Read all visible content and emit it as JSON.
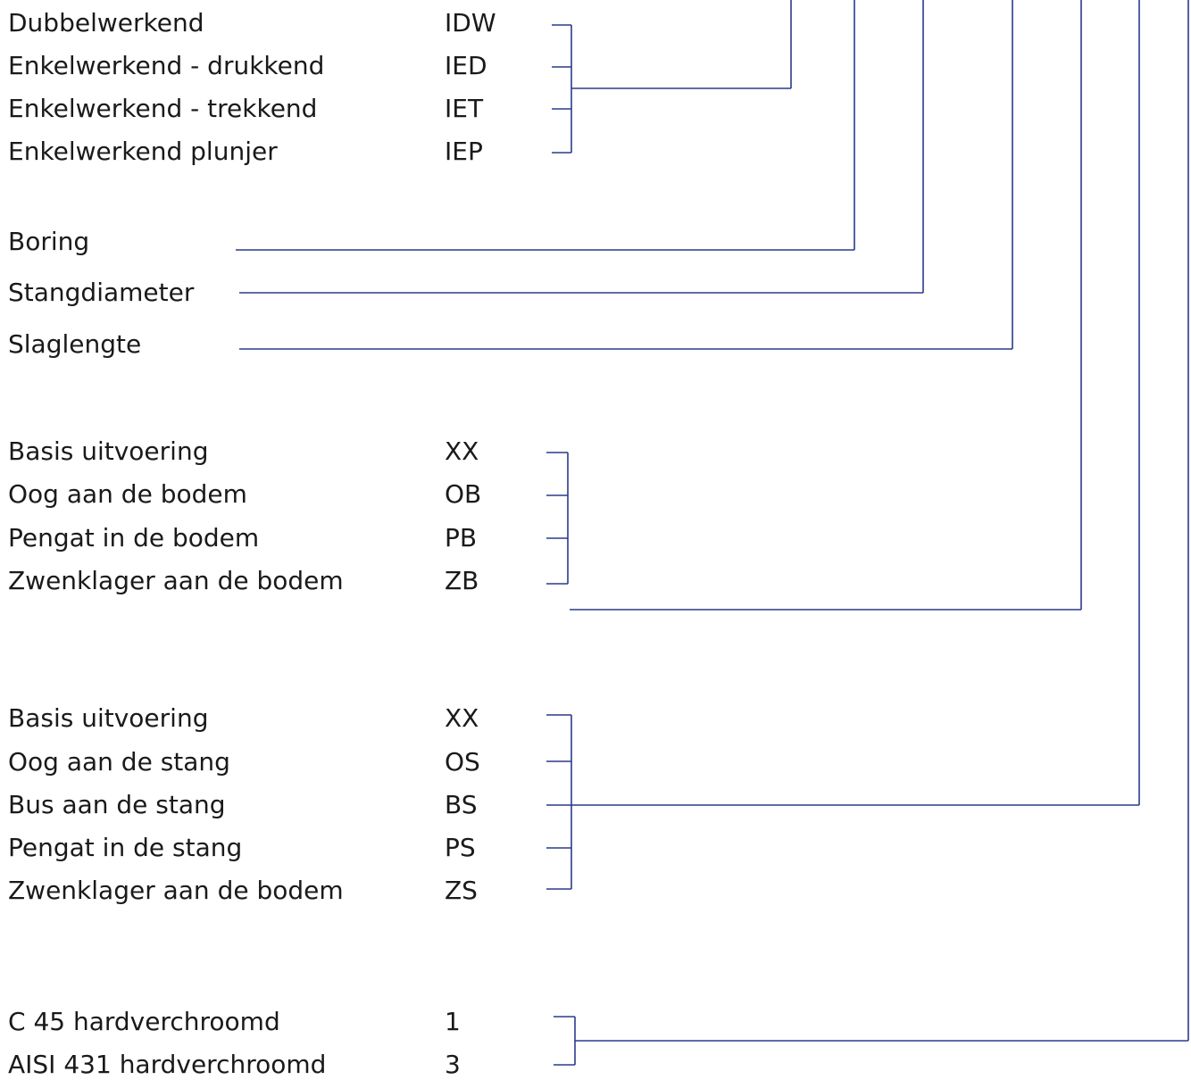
{
  "groups": {
    "action": {
      "items": [
        {
          "label": "Dubbelwerkend",
          "code": "IDW"
        },
        {
          "label": "Enkelwerkend - drukkend",
          "code": "IED"
        },
        {
          "label": "Enkelwerkend - trekkend",
          "code": "IET"
        },
        {
          "label": "Enkelwerkend plunjer",
          "code": "IEP"
        }
      ]
    },
    "dimensions": {
      "items": [
        {
          "label": "Boring"
        },
        {
          "label": "Stangdiameter"
        },
        {
          "label": "Slaglengte"
        }
      ]
    },
    "bottom_mount": {
      "items": [
        {
          "label": "Basis uitvoering",
          "code": "XX"
        },
        {
          "label": "Oog aan de bodem",
          "code": "OB"
        },
        {
          "label": "Pengat in de bodem",
          "code": "PB"
        },
        {
          "label": "Zwenklager aan de bodem",
          "code": "ZB"
        }
      ]
    },
    "rod_mount": {
      "items": [
        {
          "label": "Basis uitvoering",
          "code": "XX"
        },
        {
          "label": "Oog aan de stang",
          "code": "OS"
        },
        {
          "label": "Bus aan de stang",
          "code": "BS"
        },
        {
          "label": "Pengat in de stang",
          "code": "PS"
        },
        {
          "label": "Zwenklager aan de bodem",
          "code": "ZS"
        }
      ]
    },
    "rod_material": {
      "items": [
        {
          "label": "C 45 hardverchroomd",
          "code": "1"
        },
        {
          "label": "AISI 431 hardverchroomd",
          "code": "3"
        }
      ]
    }
  },
  "colors": {
    "line": "#2b3a8c",
    "text": "#1a1a1a",
    "background": "#ffffff"
  }
}
